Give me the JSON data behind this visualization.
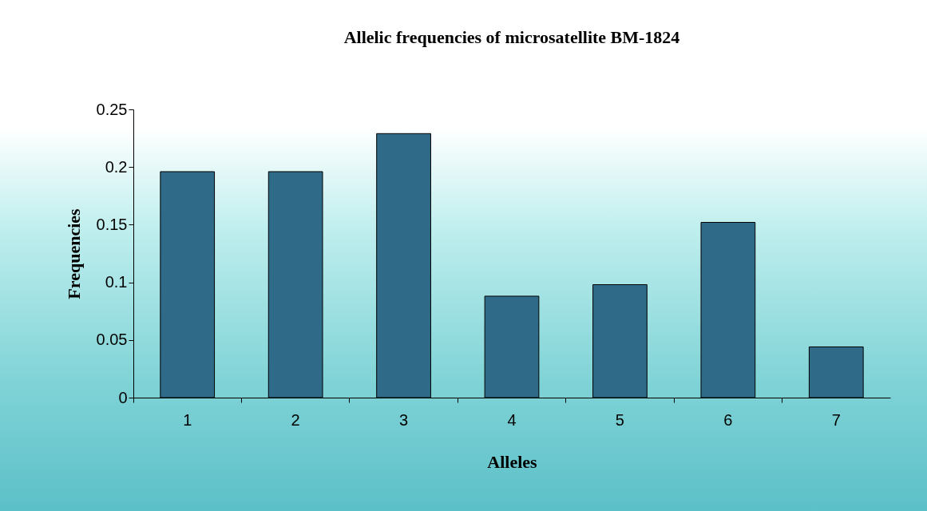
{
  "chart_data": {
    "type": "bar",
    "title": "Allelic frequencies of microsatellite BM-1824",
    "xlabel": "Alleles",
    "ylabel": "Frequencies",
    "categories": [
      "1",
      "2",
      "3",
      "4",
      "5",
      "6",
      "7"
    ],
    "values": [
      0.196,
      0.196,
      0.229,
      0.088,
      0.098,
      0.152,
      0.044
    ],
    "color": "#2f6b88",
    "ylim": [
      0,
      0.25
    ],
    "yticks": [
      0,
      0.05,
      0.1,
      0.15,
      0.2,
      0.25
    ],
    "grid": false
  }
}
